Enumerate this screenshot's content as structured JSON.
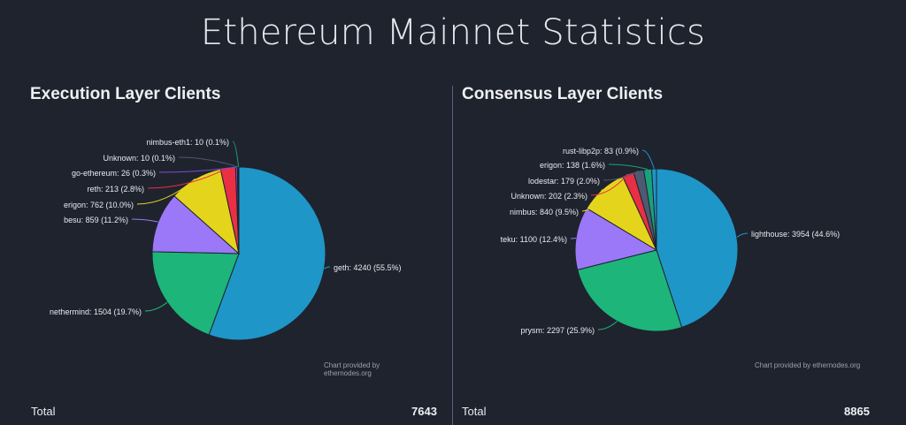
{
  "page": {
    "title": "Ethereum Mainnet Statistics"
  },
  "execution": {
    "heading": "Execution Layer Clients",
    "credit": "Chart provided by ethernodes.org",
    "total_label": "Total",
    "total_value": "7643"
  },
  "consensus": {
    "heading": "Consensus Layer Clients",
    "credit": "Chart provided by ethernodes.org",
    "total_label": "Total",
    "total_value": "8865"
  },
  "chart_data": [
    {
      "type": "pie",
      "title": "Execution Layer Clients",
      "slices": [
        {
          "name": "geth",
          "value": 4240,
          "label": "geth: 4240 (55.5%)",
          "color": "#1e96c8"
        },
        {
          "name": "nethermind",
          "value": 1504,
          "label": "nethermind: 1504 (19.7%)",
          "color": "#1db57a"
        },
        {
          "name": "besu",
          "value": 859,
          "label": "besu: 859 (11.2%)",
          "color": "#9b78f7"
        },
        {
          "name": "erigon",
          "value": 762,
          "label": "erigon: 762 (10.0%)",
          "color": "#e4d51c"
        },
        {
          "name": "reth",
          "value": 213,
          "label": "reth: 213 (2.8%)",
          "color": "#ea2f45"
        },
        {
          "name": "go-ethereum",
          "value": 26,
          "label": "go-ethereum: 26 (0.3%)",
          "color": "#7a4fd6"
        },
        {
          "name": "Unknown",
          "value": 10,
          "label": "Unknown: 10 (0.1%)",
          "color": "#4d5a72"
        },
        {
          "name": "nimbus-eth1",
          "value": 10,
          "label": "nimbus-eth1: 10 (0.1%)",
          "color": "#1aa27a"
        }
      ]
    },
    {
      "type": "pie",
      "title": "Consensus Layer Clients",
      "slices": [
        {
          "name": "lighthouse",
          "value": 3954,
          "label": "lighthouse: 3954 (44.6%)",
          "color": "#1e96c8"
        },
        {
          "name": "prysm",
          "value": 2297,
          "label": "prysm: 2297 (25.9%)",
          "color": "#1db57a"
        },
        {
          "name": "teku",
          "value": 1100,
          "label": "teku: 1100 (12.4%)",
          "color": "#9b78f7"
        },
        {
          "name": "nimbus",
          "value": 840,
          "label": "nimbus: 840 (9.5%)",
          "color": "#e4d51c"
        },
        {
          "name": "Unknown",
          "value": 202,
          "label": "Unknown: 202 (2.3%)",
          "color": "#ea2f45"
        },
        {
          "name": "lodestar",
          "value": 179,
          "label": "lodestar: 179 (2.0%)",
          "color": "#4d5a72"
        },
        {
          "name": "erigon",
          "value": 138,
          "label": "erigon: 138 (1.6%)",
          "color": "#1aa27a"
        },
        {
          "name": "rust-libp2p",
          "value": 83,
          "label": "rust-libp2p: 83 (0.9%)",
          "color": "#1e96c8"
        }
      ]
    }
  ]
}
